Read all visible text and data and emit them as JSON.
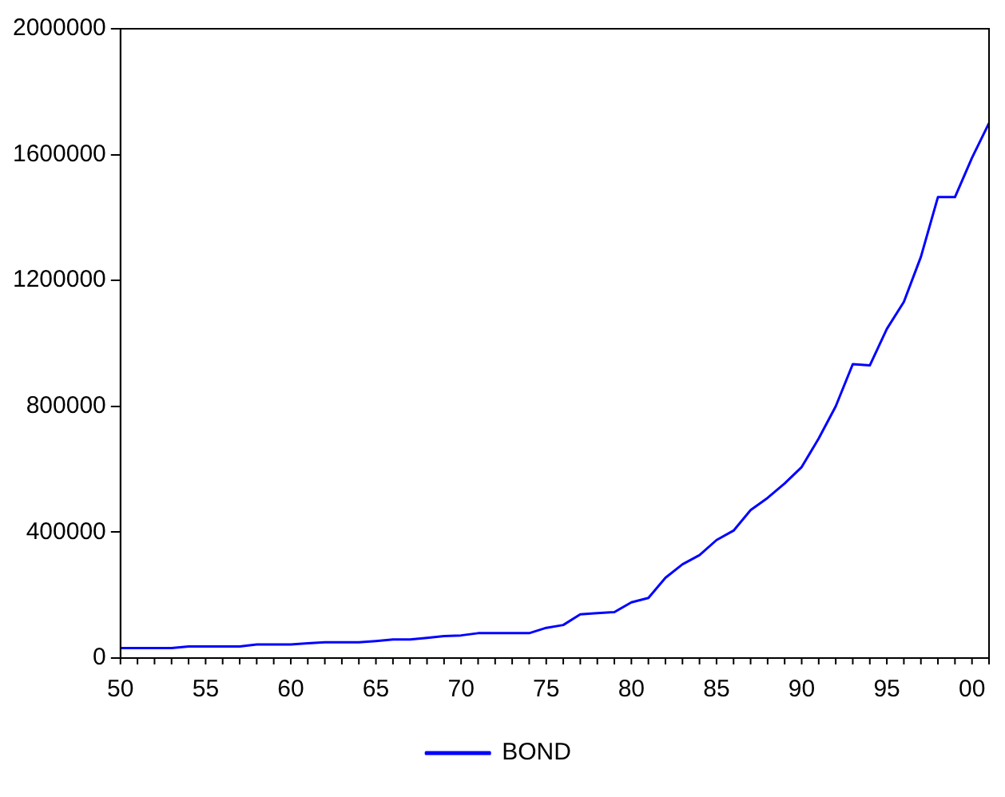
{
  "chart_data": {
    "type": "line",
    "x": [
      1950,
      1951,
      1952,
      1953,
      1954,
      1955,
      1956,
      1957,
      1958,
      1959,
      1960,
      1961,
      1962,
      1963,
      1964,
      1965,
      1966,
      1967,
      1968,
      1969,
      1970,
      1971,
      1972,
      1973,
      1974,
      1975,
      1976,
      1977,
      1978,
      1979,
      1980,
      1981,
      1982,
      1983,
      1984,
      1985,
      1986,
      1987,
      1988,
      1989,
      1990,
      1991,
      1992,
      1993,
      1994,
      1995,
      1996,
      1997,
      1998,
      1999,
      2000,
      2001
    ],
    "series": [
      {
        "name": "BOND",
        "color": "#0000ff",
        "values": [
          32000,
          32000,
          32000,
          32000,
          37000,
          37000,
          37000,
          37000,
          43000,
          43000,
          43000,
          47000,
          50000,
          50000,
          50000,
          54000,
          59000,
          59000,
          64000,
          70000,
          72000,
          79000,
          79000,
          79000,
          79000,
          96000,
          105000,
          139000,
          143000,
          146000,
          177000,
          191000,
          255000,
          298000,
          327000,
          375000,
          405000,
          470000,
          509000,
          555000,
          607000,
          698000,
          800000,
          934000,
          930000,
          1046000,
          1132000,
          1275000,
          1465000,
          1465000,
          1590000,
          1700000
        ]
      }
    ],
    "xlim": [
      1950,
      2001
    ],
    "xticks": [
      {
        "value": 1950,
        "label": "50"
      },
      {
        "value": 1955,
        "label": "55"
      },
      {
        "value": 1960,
        "label": "60"
      },
      {
        "value": 1965,
        "label": "65"
      },
      {
        "value": 1970,
        "label": "70"
      },
      {
        "value": 1975,
        "label": "75"
      },
      {
        "value": 1980,
        "label": "80"
      },
      {
        "value": 1985,
        "label": "85"
      },
      {
        "value": 1990,
        "label": "90"
      },
      {
        "value": 1995,
        "label": "95"
      },
      {
        "value": 2000,
        "label": "00"
      }
    ],
    "ylim": [
      0,
      2000000
    ],
    "yticks": [
      0,
      400000,
      800000,
      1200000,
      1600000,
      2000000
    ],
    "grid": false,
    "legend": "bottom",
    "line_style": "solid",
    "marker": "none"
  }
}
